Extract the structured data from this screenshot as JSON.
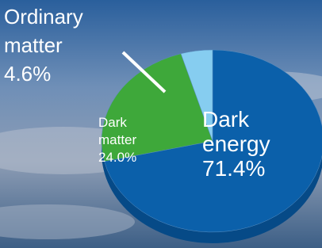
{
  "chart_data": {
    "type": "pie",
    "categories": [
      "Dark energy",
      "Dark matter",
      "Ordinary matter"
    ],
    "values": [
      71.4,
      24.0,
      4.6
    ],
    "value_labels": [
      "71.4%",
      "24.0%",
      "4.6%"
    ],
    "colors": [
      "#0b60aa",
      "#3ea83a",
      "#86cdf0"
    ]
  }
}
